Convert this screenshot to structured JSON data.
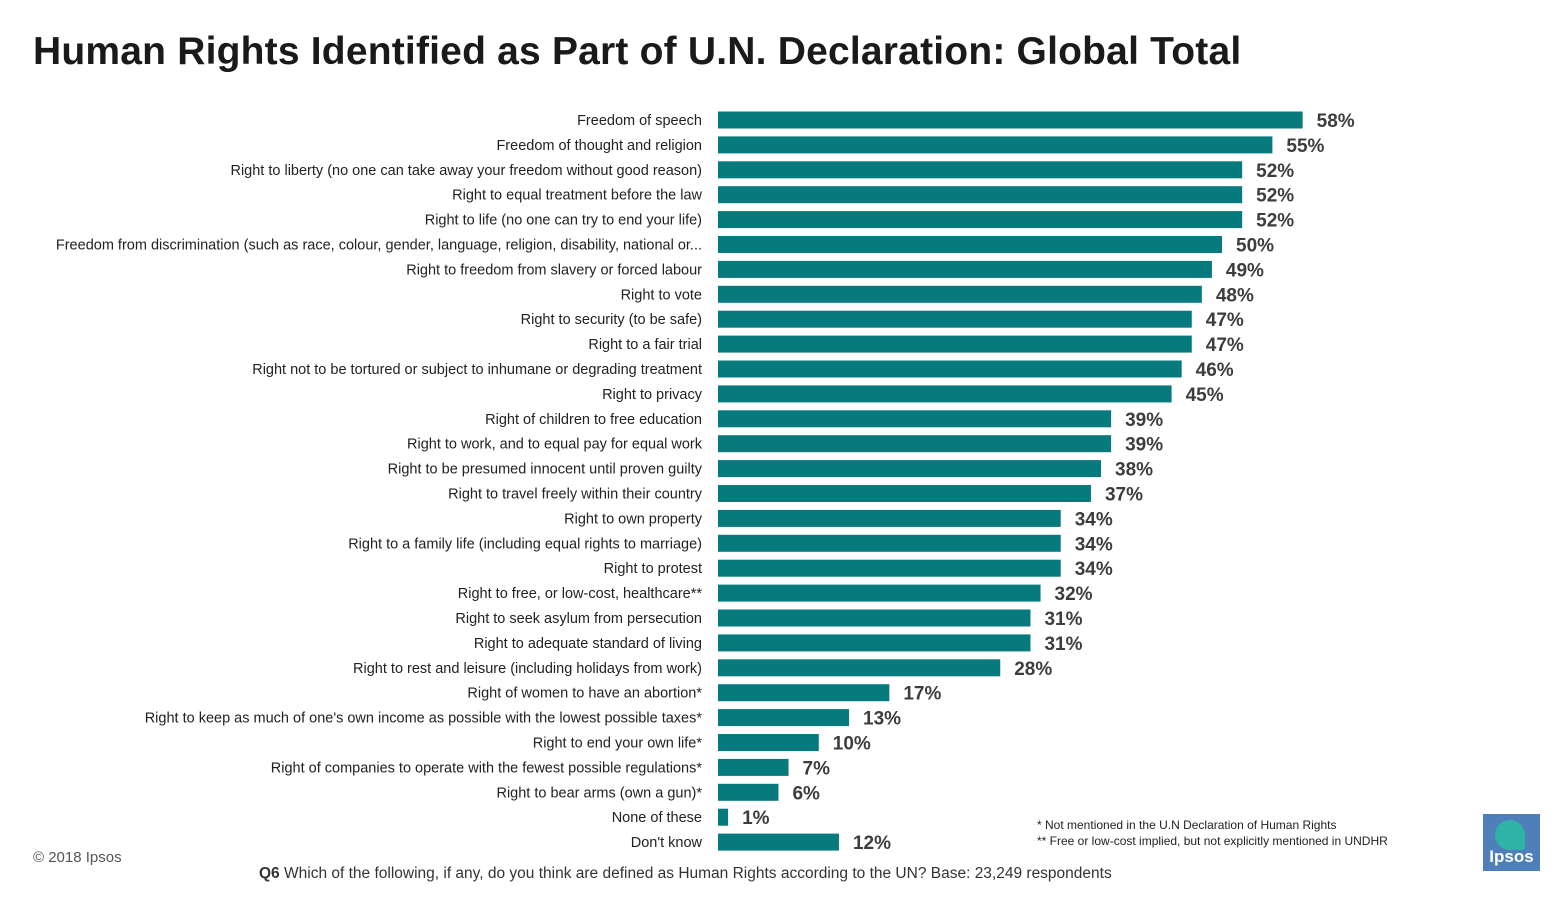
{
  "title": "Human Rights Identified as Part of U.N. Declaration: Global Total",
  "colors": {
    "bar": "#077a7e",
    "title": "#1a1a1a",
    "logo_bg": "#4f7fb8",
    "logo_accent": "#2fb3a6"
  },
  "chart_data": {
    "type": "bar",
    "orientation": "horizontal",
    "categories": [
      "Freedom of speech",
      "Freedom of thought and religion",
      "Right to liberty (no one can take away your freedom without good reason)",
      "Right to equal treatment before the law",
      "Right to life (no one can try to end your life)",
      "Freedom from discrimination (such as race, colour, gender, language, religion, disability, national or...",
      "Right to freedom from slavery or forced labour",
      "Right to vote",
      "Right to security (to be safe)",
      "Right to a fair trial",
      "Right not to be tortured or subject to inhumane or degrading treatment",
      "Right to privacy",
      "Right of children to free education",
      "Right to work, and to equal pay for equal work",
      "Right to be presumed innocent until proven guilty",
      "Right to travel freely within their country",
      "Right to own property",
      "Right to a family life (including equal rights to marriage)",
      "Right to protest",
      "Right to free, or low-cost, healthcare**",
      "Right to seek asylum from persecution",
      "Right to adequate standard of living",
      "Right to rest and leisure (including holidays from work)",
      "Right of women to have an abortion*",
      "Right to keep as much of one's own income as possible with the lowest possible taxes*",
      "Right to end your own life*",
      "Right of companies to operate with the fewest possible regulations*",
      "Right to bear arms (own a gun)*",
      "None of these",
      "Don't know"
    ],
    "values": [
      58,
      55,
      52,
      52,
      52,
      50,
      49,
      48,
      47,
      47,
      46,
      45,
      39,
      39,
      38,
      37,
      34,
      34,
      34,
      32,
      31,
      31,
      28,
      17,
      13,
      10,
      7,
      6,
      1,
      12
    ],
    "value_labels": [
      "58%",
      "55%",
      "52%",
      "52%",
      "52%",
      "50%",
      "49%",
      "48%",
      "47%",
      "47%",
      "46%",
      "45%",
      "39%",
      "39%",
      "38%",
      "37%",
      "34%",
      "34%",
      "34%",
      "32%",
      "31%",
      "31%",
      "28%",
      "17%",
      "13%",
      "10%",
      "7%",
      "6%",
      "1%",
      "12%"
    ],
    "xlim": [
      0,
      100
    ],
    "grid": false,
    "legend": "none"
  },
  "footnotes": {
    "note1": "* Not mentioned in the U.N Declaration of Human Rights",
    "note2": "** Free or low-cost implied, but not explicitly mentioned in UNDHR"
  },
  "copyright": "© 2018 Ipsos",
  "question": {
    "label": "Q6",
    "text": " Which of the following, if any, do you think are defined as Human Rights according to the UN? Base: 23,249 respondents"
  },
  "logo": {
    "text": "Ipsos"
  }
}
